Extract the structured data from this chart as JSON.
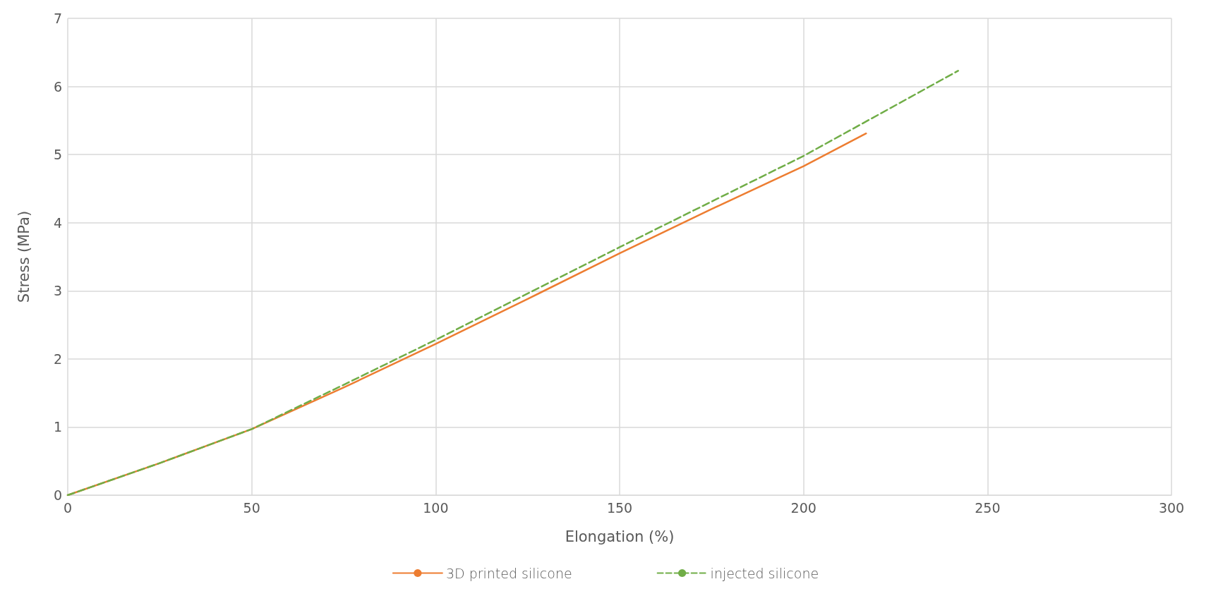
{
  "chart_data": {
    "type": "line",
    "xlabel": "Elongation (%)",
    "ylabel": "Stress (MPa)",
    "xlim": [
      0,
      300
    ],
    "xticks": [
      0,
      50,
      100,
      150,
      200,
      250,
      300
    ],
    "ylim": [
      0,
      7
    ],
    "yticks": [
      0,
      1,
      2,
      3,
      4,
      5,
      6,
      7
    ],
    "grid": true,
    "legend": "bottom",
    "marker": "none",
    "series": [
      {
        "name": "3D printed silicone",
        "color": "#ed7d31",
        "line_style": "solid",
        "x": [
          0,
          25,
          50,
          75,
          100,
          125,
          150,
          175,
          200,
          217
        ],
        "values": [
          0,
          0.47,
          0.97,
          1.58,
          2.22,
          2.88,
          3.55,
          4.2,
          4.83,
          5.31
        ]
      },
      {
        "name": "injected silicone",
        "color": "#70ad47",
        "line_style": "dashed",
        "x": [
          0,
          25,
          50,
          75,
          100,
          125,
          150,
          175,
          200,
          242
        ],
        "values": [
          0,
          0.47,
          0.97,
          1.62,
          2.28,
          2.96,
          3.64,
          4.31,
          4.98,
          6.23
        ]
      }
    ]
  }
}
